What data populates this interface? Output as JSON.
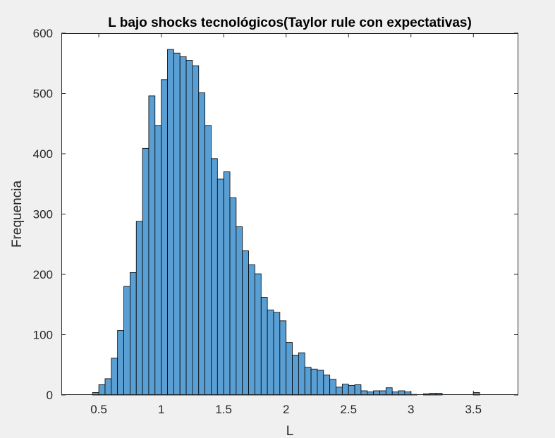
{
  "chart_data": {
    "type": "bar",
    "title": "L bajo shocks tecnológicos(Taylor rule con expectativas)",
    "xlabel": "L",
    "ylabel": "Frequencia",
    "xlim": [
      0.2,
      3.86
    ],
    "ylim": [
      0,
      600
    ],
    "xticks": [
      "0.5",
      "1",
      "1.5",
      "2",
      "2.5",
      "3",
      "3.5"
    ],
    "yticks": [
      "0",
      "100",
      "200",
      "300",
      "400",
      "500",
      "600"
    ],
    "bin_width": 0.05,
    "bin_start": 0.45,
    "values": [
      4,
      17,
      27,
      61,
      107,
      180,
      203,
      288,
      409,
      496,
      447,
      523,
      573,
      567,
      561,
      555,
      546,
      501,
      447,
      392,
      358,
      370,
      327,
      279,
      239,
      216,
      201,
      162,
      141,
      137,
      123,
      87,
      66,
      70,
      46,
      43,
      41,
      33,
      26,
      13,
      18,
      16,
      17,
      7,
      5,
      7,
      7,
      12,
      5,
      7,
      5,
      1,
      0,
      2,
      3,
      3,
      0,
      0,
      0,
      0,
      0,
      4,
      0,
      0,
      0,
      0
    ],
    "grid": false,
    "colors": {
      "bar_fill": "#5a9fd4",
      "bar_edge": "#000000",
      "axes_bg": "#ffffff",
      "figure_bg": "#f0f0f0"
    }
  }
}
